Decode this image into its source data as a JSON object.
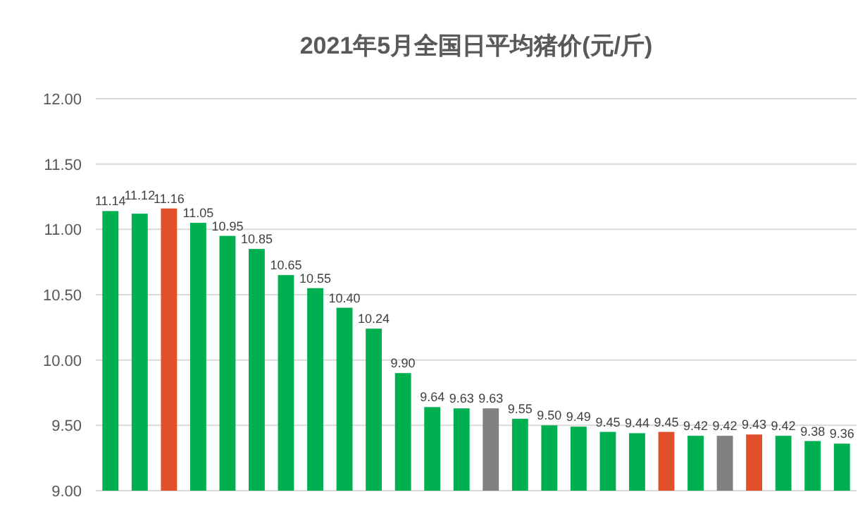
{
  "chart_data": {
    "type": "bar",
    "title": "2021年5月全国日平均猪价(元/斤)",
    "categories": [
      null,
      null,
      null,
      null,
      null,
      null,
      null,
      null,
      null,
      null,
      null,
      null,
      null,
      null,
      null,
      null,
      null,
      null,
      null,
      null,
      null,
      null,
      null,
      null,
      null,
      null
    ],
    "values": [
      11.14,
      11.12,
      11.16,
      11.05,
      10.95,
      10.85,
      10.65,
      10.55,
      10.4,
      10.24,
      9.9,
      9.64,
      9.63,
      9.63,
      9.55,
      9.5,
      9.49,
      9.45,
      9.44,
      9.45,
      9.42,
      9.42,
      9.43,
      9.42,
      9.38,
      9.36
    ],
    "colors": [
      "#00b050",
      "#00b050",
      "#e0502a",
      "#00b050",
      "#00b050",
      "#00b050",
      "#00b050",
      "#00b050",
      "#00b050",
      "#00b050",
      "#00b050",
      "#00b050",
      "#00b050",
      "#808080",
      "#00b050",
      "#00b050",
      "#00b050",
      "#00b050",
      "#00b050",
      "#e0502a",
      "#00b050",
      "#808080",
      "#e0502a",
      "#00b050",
      "#00b050",
      "#00b050"
    ],
    "ylim": [
      9,
      12
    ],
    "yticks": [
      {
        "value": 9,
        "label": "9.00"
      },
      {
        "value": 9.5,
        "label": "9.50"
      },
      {
        "value": 10,
        "label": "10.00"
      },
      {
        "value": 10.5,
        "label": "10.50"
      },
      {
        "value": 11,
        "label": "11.00"
      },
      {
        "value": 11.5,
        "label": "11.50"
      },
      {
        "value": 12,
        "label": "12.00"
      }
    ],
    "grid": "y",
    "value_labels": [
      "11.14",
      "11.12",
      "11.16",
      "11.05",
      "10.95",
      "10.85",
      "10.65",
      "10.55",
      "10.40",
      "10.24",
      "9.90",
      "9.64",
      "9.63",
      "9.63",
      "9.55",
      "9.50",
      "9.49",
      "9.45",
      "9.44",
      "9.45",
      "9.42",
      "9.42",
      "9.43",
      "9.42",
      "9.38",
      "9.36"
    ]
  }
}
